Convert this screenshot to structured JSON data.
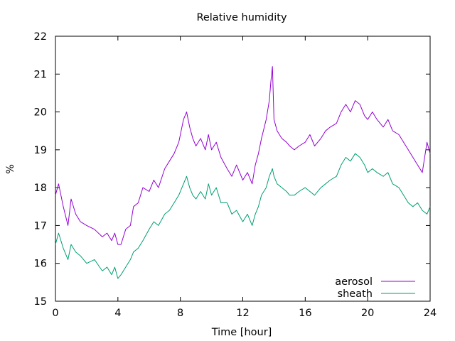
{
  "chart_data": {
    "type": "line",
    "title": "Relative humidity",
    "xlabel": "Time [hour]",
    "ylabel": "%",
    "xlim": [
      0,
      24
    ],
    "ylim": [
      15,
      22
    ],
    "xticks": [
      0,
      4,
      8,
      12,
      16,
      20,
      24
    ],
    "yticks": [
      15,
      16,
      17,
      18,
      19,
      20,
      21,
      22
    ],
    "grid": false,
    "legend_position": "bottom-right",
    "series": [
      {
        "name": "aerosol",
        "color": "#9400d3",
        "x": [
          0,
          0.2,
          0.5,
          0.8,
          1.0,
          1.3,
          1.6,
          2.0,
          2.5,
          3.0,
          3.3,
          3.6,
          3.8,
          4.0,
          4.2,
          4.5,
          4.8,
          5.0,
          5.3,
          5.6,
          6.0,
          6.3,
          6.6,
          7.0,
          7.3,
          7.6,
          7.9,
          8.2,
          8.4,
          8.6,
          8.8,
          9.0,
          9.3,
          9.6,
          9.8,
          10.0,
          10.3,
          10.6,
          11.0,
          11.3,
          11.6,
          12.0,
          12.3,
          12.6,
          12.8,
          13.0,
          13.2,
          13.5,
          13.7,
          13.8,
          13.9,
          14.0,
          14.2,
          14.5,
          14.8,
          15.0,
          15.3,
          15.6,
          16.0,
          16.3,
          16.6,
          17.0,
          17.3,
          17.6,
          18.0,
          18.3,
          18.6,
          18.9,
          19.2,
          19.5,
          19.8,
          20.0,
          20.3,
          20.6,
          21.0,
          21.3,
          21.6,
          22.0,
          22.3,
          22.6,
          22.9,
          23.2,
          23.5,
          23.8,
          24.0
        ],
        "values": [
          17.8,
          18.1,
          17.5,
          17.0,
          17.7,
          17.3,
          17.1,
          17.0,
          16.9,
          16.7,
          16.8,
          16.6,
          16.8,
          16.5,
          16.5,
          16.9,
          17.0,
          17.5,
          17.6,
          18.0,
          17.9,
          18.2,
          18.0,
          18.5,
          18.7,
          18.9,
          19.2,
          19.8,
          20.0,
          19.6,
          19.3,
          19.1,
          19.3,
          19.0,
          19.4,
          19.0,
          19.2,
          18.8,
          18.5,
          18.3,
          18.6,
          18.2,
          18.4,
          18.1,
          18.6,
          18.9,
          19.3,
          19.8,
          20.3,
          20.8,
          21.2,
          19.8,
          19.5,
          19.3,
          19.2,
          19.1,
          19.0,
          19.1,
          19.2,
          19.4,
          19.1,
          19.3,
          19.5,
          19.6,
          19.7,
          20.0,
          20.2,
          20.0,
          20.3,
          20.2,
          19.9,
          19.8,
          20.0,
          19.8,
          19.6,
          19.8,
          19.5,
          19.4,
          19.2,
          19.0,
          18.8,
          18.6,
          18.4,
          19.2,
          18.9
        ]
      },
      {
        "name": "sheath",
        "color": "#009e73",
        "x": [
          0,
          0.2,
          0.5,
          0.8,
          1.0,
          1.3,
          1.6,
          2.0,
          2.5,
          3.0,
          3.3,
          3.6,
          3.8,
          4.0,
          4.2,
          4.5,
          4.8,
          5.0,
          5.3,
          5.6,
          6.0,
          6.3,
          6.6,
          7.0,
          7.3,
          7.6,
          7.9,
          8.2,
          8.4,
          8.6,
          8.8,
          9.0,
          9.3,
          9.6,
          9.8,
          10.0,
          10.3,
          10.6,
          11.0,
          11.3,
          11.6,
          12.0,
          12.3,
          12.6,
          12.8,
          13.0,
          13.2,
          13.5,
          13.7,
          13.8,
          13.9,
          14.0,
          14.2,
          14.5,
          14.8,
          15.0,
          15.3,
          15.6,
          16.0,
          16.3,
          16.6,
          17.0,
          17.3,
          17.6,
          18.0,
          18.3,
          18.6,
          18.9,
          19.2,
          19.5,
          19.8,
          20.0,
          20.3,
          20.6,
          21.0,
          21.3,
          21.6,
          22.0,
          22.3,
          22.6,
          22.9,
          23.2,
          23.5,
          23.8,
          24.0
        ],
        "values": [
          16.5,
          16.8,
          16.4,
          16.1,
          16.5,
          16.3,
          16.2,
          16.0,
          16.1,
          15.8,
          15.9,
          15.7,
          15.9,
          15.6,
          15.7,
          15.9,
          16.1,
          16.3,
          16.4,
          16.6,
          16.9,
          17.1,
          17.0,
          17.3,
          17.4,
          17.6,
          17.8,
          18.1,
          18.3,
          18.0,
          17.8,
          17.7,
          17.9,
          17.7,
          18.1,
          17.8,
          18.0,
          17.6,
          17.6,
          17.3,
          17.4,
          17.1,
          17.3,
          17.0,
          17.3,
          17.5,
          17.8,
          18.0,
          18.3,
          18.4,
          18.5,
          18.3,
          18.1,
          18.0,
          17.9,
          17.8,
          17.8,
          17.9,
          18.0,
          17.9,
          17.8,
          18.0,
          18.1,
          18.2,
          18.3,
          18.6,
          18.8,
          18.7,
          18.9,
          18.8,
          18.6,
          18.4,
          18.5,
          18.4,
          18.3,
          18.4,
          18.1,
          18.0,
          17.8,
          17.6,
          17.5,
          17.6,
          17.4,
          17.3,
          17.5
        ]
      }
    ]
  }
}
